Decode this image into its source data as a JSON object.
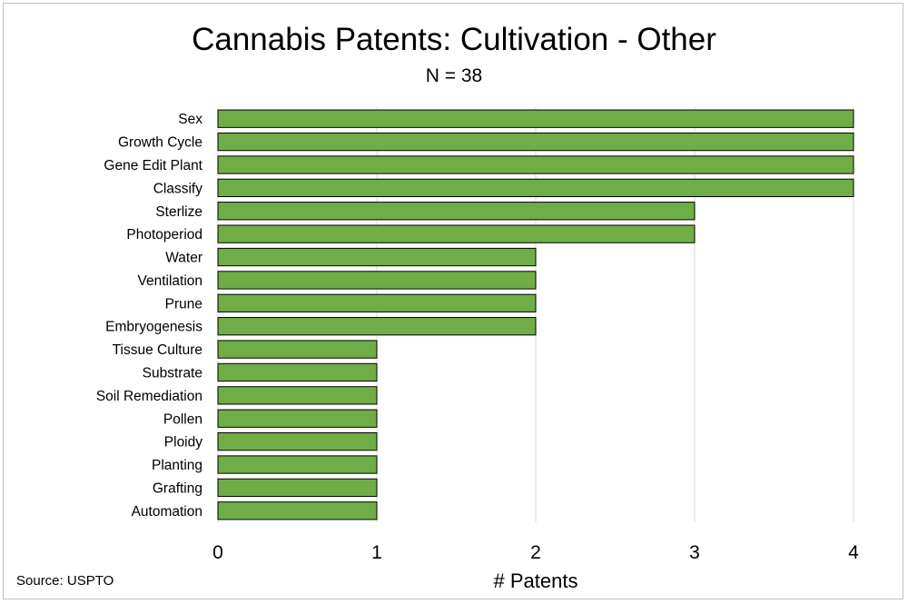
{
  "chart_data": {
    "type": "bar",
    "orientation": "horizontal",
    "title": "Cannabis Patents: Cultivation - Other",
    "subtitle": "N = 38",
    "xlabel": "# Patents",
    "ylabel": "",
    "source": "Source: USPTO",
    "xlim": [
      0,
      4
    ],
    "xticks": [
      0,
      1,
      2,
      3,
      4
    ],
    "grid": true,
    "bar_color": "#70ad47",
    "bar_edge_color": "#000000",
    "grid_color": "#d9d9d9",
    "categories": [
      "Sex",
      "Growth Cycle",
      "Gene Edit Plant",
      "Classify",
      "Sterlize",
      "Photoperiod",
      "Water",
      "Ventilation",
      "Prune",
      "Embryogenesis",
      "Tissue Culture",
      "Substrate",
      "Soil Remediation",
      "Pollen",
      "Ploidy",
      "Planting",
      "Grafting",
      "Automation"
    ],
    "values": [
      4,
      4,
      4,
      4,
      3,
      3,
      2,
      2,
      2,
      2,
      1,
      1,
      1,
      1,
      1,
      1,
      1,
      1
    ]
  }
}
